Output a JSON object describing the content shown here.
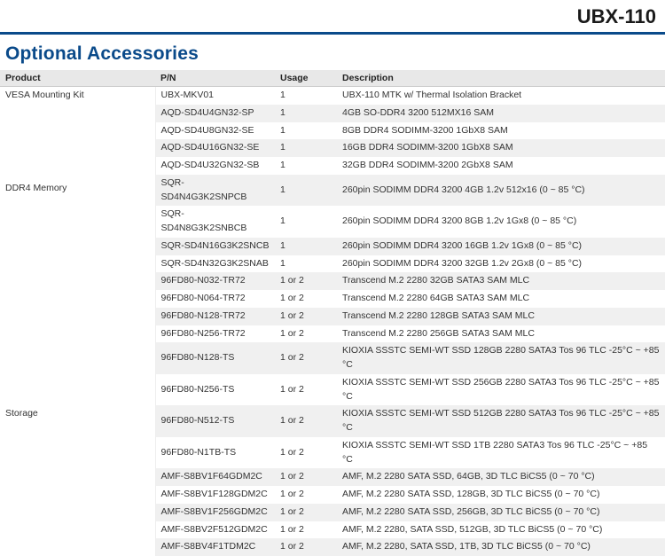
{
  "header": {
    "model": "UBX-110"
  },
  "section": {
    "title": "Optional Accessories"
  },
  "columns": {
    "product": "Product",
    "pn": "P/N",
    "usage": "Usage",
    "description": "Description"
  },
  "groups": [
    {
      "product": "VESA Mounting Kit",
      "rows": [
        {
          "pn": "UBX-MKV01",
          "usage": "1",
          "desc": "UBX-110 MTK w/ Thermal Isolation Bracket"
        }
      ]
    },
    {
      "product": "DDR4 Memory",
      "rows": [
        {
          "pn": "AQD-SD4U4GN32-SP",
          "usage": "1",
          "desc": "4GB SO-DDR4 3200 512MX16 SAM"
        },
        {
          "pn": "AQD-SD4U8GN32-SE",
          "usage": "1",
          "desc": "8GB DDR4 SODIMM-3200 1GbX8 SAM"
        },
        {
          "pn": "AQD-SD4U16GN32-SE",
          "usage": "1",
          "desc": "16GB DDR4 SODIMM-3200 1GbX8 SAM"
        },
        {
          "pn": "AQD-SD4U32GN32-SB",
          "usage": "1",
          "desc": "32GB DDR4 SODIMM-3200 2GbX8 SAM"
        },
        {
          "pn": "SQR-SD4N4G3K2SNPCB",
          "usage": "1",
          "desc": "260pin SODIMM DDR4 3200 4GB 1.2v 512x16 (0 ~ 85 °C)"
        },
        {
          "pn": "SQR-SD4N8G3K2SNBCB",
          "usage": "1",
          "desc": "260pin SODIMM DDR4 3200 8GB 1.2v 1Gx8 (0 ~ 85 °C)"
        },
        {
          "pn": "SQR-SD4N16G3K2SNCB",
          "usage": "1",
          "desc": "260pin SODIMM DDR4 3200 16GB 1.2v 1Gx8 (0 ~ 85 °C)"
        },
        {
          "pn": "SQR-SD4N32G3K2SNAB",
          "usage": "1",
          "desc": "260pin SODIMM DDR4 3200 32GB 1.2v 2Gx8 (0 ~ 85 °C)"
        }
      ]
    },
    {
      "product": "Storage",
      "rows": [
        {
          "pn": "96FD80-N032-TR72",
          "usage": "1 or 2",
          "desc": "Transcend M.2 2280 32GB SATA3 SAM MLC"
        },
        {
          "pn": "96FD80-N064-TR72",
          "usage": "1 or 2",
          "desc": "Transcend M.2 2280 64GB SATA3 SAM MLC"
        },
        {
          "pn": "96FD80-N128-TR72",
          "usage": "1 or 2",
          "desc": "Transcend M.2 2280 128GB SATA3 SAM MLC"
        },
        {
          "pn": "96FD80-N256-TR72",
          "usage": "1 or 2",
          "desc": "Transcend M.2 2280 256GB SATA3 SAM MLC"
        },
        {
          "pn": "96FD80-N128-TS",
          "usage": "1 or 2",
          "desc": "KIOXIA SSSTC SEMI-WT SSD 128GB 2280 SATA3 Tos 96 TLC -25°C ~ +85 °C"
        },
        {
          "pn": "96FD80-N256-TS",
          "usage": "1 or 2",
          "desc": "KIOXIA SSSTC SEMI-WT SSD 256GB 2280 SATA3 Tos 96 TLC -25°C ~ +85 °C"
        },
        {
          "pn": "96FD80-N512-TS",
          "usage": "1 or 2",
          "desc": "KIOXIA SSSTC SEMI-WT SSD 512GB 2280 SATA3 Tos 96 TLC -25°C ~ +85 °C"
        },
        {
          "pn": "96FD80-N1TB-TS",
          "usage": "1 or 2",
          "desc": "KIOXIA SSSTC SEMI-WT SSD 1TB 2280 SATA3 Tos 96 TLC -25°C ~ +85 °C"
        },
        {
          "pn": "AMF-S8BV1F64GDM2C",
          "usage": "1 or 2",
          "desc": "AMF, M.2 2280 SATA SSD, 64GB, 3D TLC BiCS5 (0 ~ 70 °C)"
        },
        {
          "pn": "AMF-S8BV1F128GDM2C",
          "usage": "1 or 2",
          "desc": "AMF, M.2 2280 SATA SSD, 128GB, 3D TLC BiCS5 (0 ~ 70 °C)"
        },
        {
          "pn": "AMF-S8BV1F256GDM2C",
          "usage": "1 or 2",
          "desc": "AMF, M.2 2280 SATA SSD, 256GB, 3D TLC BiCS5 (0 ~ 70 °C)"
        },
        {
          "pn": "AMF-S8BV2F512GDM2C",
          "usage": "1 or 2",
          "desc": "AMF, M.2 2280, SATA SSD, 512GB, 3D TLC BiCS5 (0 ~ 70 °C)"
        },
        {
          "pn": "AMF-S8BV4F1TDM2C",
          "usage": "1 or 2",
          "desc": "AMF, M.2 2280, SATA SSD, 1TB, 3D TLC BiCS5 (0 ~ 70 °C)"
        }
      ]
    }
  ],
  "style": {
    "accent_color": "#0a4a8a",
    "row_even_bg": "#ffffff",
    "row_odd_bg": "#f0f0f0",
    "header_bg": "#e8e8e8",
    "font_size_table": 10.5,
    "font_size_title": 21,
    "font_size_model": 22
  }
}
